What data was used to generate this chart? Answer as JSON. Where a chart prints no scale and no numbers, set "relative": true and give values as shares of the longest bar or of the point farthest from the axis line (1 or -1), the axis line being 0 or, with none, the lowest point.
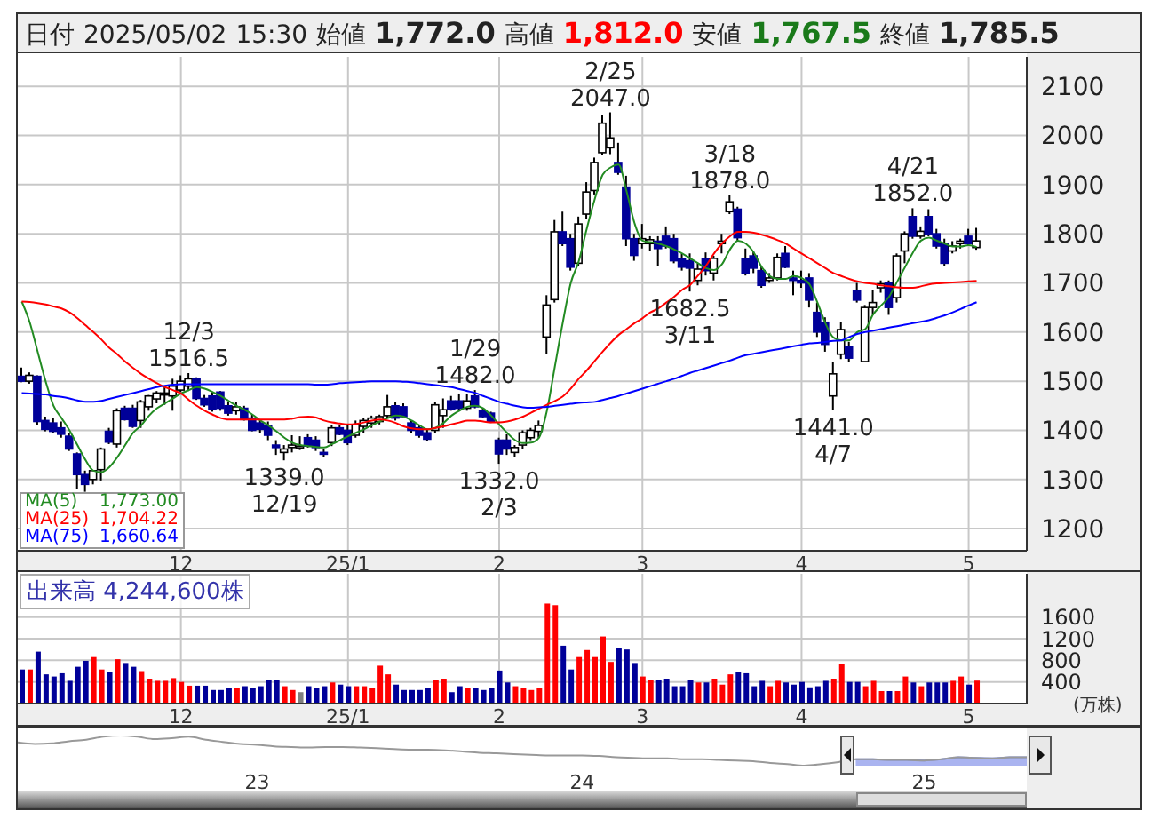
{
  "chart_data": [
    {
      "type": "candlestick",
      "title": "日付 2025/05/02 15:30 始値 1,772.0 高値 1,812.0 安値 1,767.5 終値 1,785.5",
      "categories": [
        null,
        null,
        null,
        null,
        null,
        null,
        null,
        null,
        null,
        null,
        null,
        null,
        null,
        null,
        null,
        null,
        null,
        null,
        null,
        null,
        "12",
        null,
        null,
        null,
        null,
        null,
        null,
        null,
        null,
        null,
        null,
        null,
        null,
        null,
        null,
        null,
        null,
        null,
        null,
        null,
        null,
        "25/1",
        null,
        null,
        null,
        null,
        null,
        null,
        null,
        null,
        null,
        null,
        null,
        null,
        null,
        null,
        null,
        null,
        null,
        null,
        "2",
        null,
        null,
        null,
        null,
        null,
        null,
        null,
        null,
        null,
        null,
        null,
        null,
        null,
        null,
        null,
        null,
        null,
        "3",
        null,
        null,
        null,
        null,
        null,
        null,
        null,
        null,
        null,
        null,
        null,
        null,
        null,
        null,
        null,
        null,
        null,
        null,
        null,
        "4",
        null,
        null,
        null,
        null,
        null,
        null,
        null,
        null,
        null,
        null,
        null,
        null,
        null,
        null,
        null,
        null,
        null,
        null,
        null,
        null,
        "5",
        null
      ],
      "ohlc": [
        [
          1510,
          1528,
          1498,
          1500
        ],
        [
          1500,
          1518,
          1495,
          1512
        ],
        [
          1510,
          1512,
          1410,
          1418
        ],
        [
          1420,
          1428,
          1398,
          1402
        ],
        [
          1415,
          1425,
          1395,
          1398
        ],
        [
          1405,
          1418,
          1385,
          1392
        ],
        [
          1388,
          1395,
          1358,
          1362
        ],
        [
          1352,
          1355,
          1280,
          1310
        ],
        [
          1310,
          1318,
          1275,
          1290
        ],
        [
          1300,
          1318,
          1290,
          1318
        ],
        [
          1320,
          1365,
          1298,
          1362
        ],
        [
          1398,
          1405,
          1372,
          1376
        ],
        [
          1372,
          1445,
          1365,
          1440
        ],
        [
          1445,
          1450,
          1420,
          1422
        ],
        [
          1445,
          1452,
          1405,
          1408
        ],
        [
          1420,
          1462,
          1405,
          1458
        ],
        [
          1448,
          1472,
          1440,
          1470
        ],
        [
          1464,
          1480,
          1455,
          1476
        ],
        [
          1472,
          1490,
          1452,
          1476
        ],
        [
          1470,
          1505,
          1440,
          1490
        ],
        [
          1482,
          1512,
          1478,
          1500
        ],
        [
          1490,
          1516.5,
          1480,
          1505
        ],
        [
          1505,
          1508,
          1462,
          1465
        ],
        [
          1465,
          1472,
          1448,
          1452
        ],
        [
          1470,
          1478,
          1438,
          1442
        ],
        [
          1478,
          1480,
          1440,
          1445
        ],
        [
          1450,
          1458,
          1430,
          1435
        ],
        [
          1440,
          1458,
          1432,
          1448
        ],
        [
          1445,
          1450,
          1420,
          1422
        ],
        [
          1425,
          1432,
          1398,
          1400
        ],
        [
          1415,
          1420,
          1395,
          1402
        ],
        [
          1410,
          1418,
          1380,
          1390
        ],
        [
          1370,
          1380,
          1350,
          1365
        ],
        [
          1355,
          1370,
          1339,
          1362
        ],
        [
          1365,
          1390,
          1355,
          1370
        ],
        [
          1368,
          1388,
          1360,
          1368
        ],
        [
          1385,
          1392,
          1365,
          1368
        ],
        [
          1380,
          1388,
          1358,
          1365
        ],
        [
          1355,
          1362,
          1345,
          1352
        ],
        [
          1375,
          1410,
          1368,
          1405
        ],
        [
          1405,
          1410,
          1390,
          1392
        ],
        [
          1400,
          1412,
          1370,
          1375
        ],
        [
          1390,
          1420,
          1385,
          1412
        ],
        [
          1408,
          1425,
          1395,
          1420
        ],
        [
          1415,
          1430,
          1405,
          1425
        ],
        [
          1418,
          1432,
          1412,
          1428
        ],
        [
          1430,
          1472,
          1425,
          1448
        ],
        [
          1450,
          1458,
          1420,
          1425
        ],
        [
          1448,
          1455,
          1425,
          1428
        ],
        [
          1415,
          1420,
          1395,
          1400
        ],
        [
          1405,
          1410,
          1385,
          1390
        ],
        [
          1395,
          1402,
          1378,
          1382
        ],
        [
          1400,
          1458,
          1395,
          1452
        ],
        [
          1430,
          1465,
          1405,
          1442
        ],
        [
          1460,
          1470,
          1440,
          1442
        ],
        [
          1460,
          1475,
          1440,
          1445
        ],
        [
          1445,
          1475,
          1440,
          1460
        ],
        [
          1470,
          1482,
          1445,
          1448
        ],
        [
          1440,
          1445,
          1425,
          1428
        ],
        [
          1435,
          1438,
          1415,
          1418
        ],
        [
          1380,
          1385,
          1332,
          1352
        ],
        [
          1380,
          1392,
          1350,
          1362
        ],
        [
          1355,
          1370,
          1345,
          1365
        ],
        [
          1370,
          1400,
          1362,
          1395
        ],
        [
          1385,
          1405,
          1380,
          1400
        ],
        [
          1398,
          1420,
          1385,
          1410
        ],
        [
          1590,
          1675,
          1555,
          1655
        ],
        [
          1666,
          1828,
          1660,
          1804
        ],
        [
          1804,
          1845,
          1775,
          1780
        ],
        [
          1790,
          1800,
          1725,
          1732
        ],
        [
          1740,
          1835,
          1735,
          1820
        ],
        [
          1840,
          1905,
          1830,
          1885
        ],
        [
          1888,
          1955,
          1880,
          1945
        ],
        [
          1965,
          2042,
          1960,
          2025
        ],
        [
          1975,
          2047,
          1962,
          1995
        ],
        [
          1945,
          1985,
          1920,
          1925
        ],
        [
          1895,
          1918,
          1775,
          1790
        ],
        [
          1790,
          1800,
          1745,
          1756
        ],
        [
          1780,
          1820,
          1770,
          1790
        ],
        [
          1780,
          1795,
          1765,
          1788
        ],
        [
          1785,
          1795,
          1735,
          1770
        ],
        [
          1795,
          1815,
          1770,
          1775
        ],
        [
          1790,
          1800,
          1740,
          1745
        ],
        [
          1750,
          1760,
          1725,
          1732
        ],
        [
          1745,
          1760,
          1682.5,
          1730
        ],
        [
          1705,
          1740,
          1695,
          1728
        ],
        [
          1750,
          1762,
          1715,
          1725
        ],
        [
          1720,
          1755,
          1705,
          1750
        ],
        [
          1780,
          1800,
          1760,
          1785
        ],
        [
          1845,
          1878,
          1840,
          1865
        ],
        [
          1850,
          1855,
          1785,
          1792
        ],
        [
          1750,
          1770,
          1715,
          1720
        ],
        [
          1755,
          1765,
          1720,
          1730
        ],
        [
          1725,
          1735,
          1690,
          1695
        ],
        [
          1705,
          1720,
          1700,
          1710
        ],
        [
          1710,
          1760,
          1705,
          1752
        ],
        [
          1760,
          1775,
          1730,
          1732
        ],
        [
          1710,
          1725,
          1675,
          1705
        ],
        [
          1705,
          1725,
          1690,
          1700
        ],
        [
          1710,
          1720,
          1650,
          1665
        ],
        [
          1640,
          1660,
          1590,
          1600
        ],
        [
          1620,
          1630,
          1560,
          1575
        ],
        [
          1470,
          1540,
          1441,
          1515
        ],
        [
          1555,
          1620,
          1545,
          1605
        ],
        [
          1570,
          1580,
          1540,
          1547
        ],
        [
          1685,
          1700,
          1660,
          1665
        ],
        [
          1540,
          1655,
          1540,
          1650
        ],
        [
          1650,
          1685,
          1635,
          1660
        ],
        [
          1690,
          1705,
          1680,
          1698
        ],
        [
          1700,
          1705,
          1635,
          1650
        ],
        [
          1670,
          1760,
          1660,
          1755
        ],
        [
          1765,
          1805,
          1740,
          1800
        ],
        [
          1835,
          1852,
          1790,
          1795
        ],
        [
          1795,
          1815,
          1790,
          1805
        ],
        [
          1835,
          1850,
          1795,
          1800
        ],
        [
          1800,
          1810,
          1770,
          1775
        ],
        [
          1780,
          1790,
          1735,
          1740
        ],
        [
          1765,
          1785,
          1760,
          1775
        ],
        [
          1780,
          1790,
          1770,
          1785
        ],
        [
          1795,
          1810,
          1775,
          1780
        ],
        [
          1772,
          1812,
          1767.5,
          1785.5
        ]
      ],
      "colors": [
        "#000099",
        "#ffffff",
        "#000099",
        "#000099",
        "#000099",
        "#000099",
        "#000099",
        "#000099",
        "#000099",
        "#ffffff",
        "#ffffff",
        "#000099",
        "#ffffff",
        "#000099",
        "#000099",
        "#ffffff",
        "#ffffff",
        "#ffffff",
        "#ffffff",
        "#ffffff",
        "#ffffff",
        "#ffffff",
        "#000099",
        "#000099",
        "#000099",
        "#000099",
        "#000099",
        "#ffffff",
        "#000099",
        "#000099",
        "#000099",
        "#000099",
        "#000099",
        "#ffffff",
        "#ffffff",
        "#ffffff",
        "#000099",
        "#000099",
        "#000099",
        "#ffffff",
        "#000099",
        "#000099",
        "#ffffff",
        "#ffffff",
        "#ffffff",
        "#ffffff",
        "#ffffff",
        "#000099",
        "#000099",
        "#000099",
        "#000099",
        "#000099",
        "#ffffff",
        "#ffffff",
        "#000099",
        "#000099",
        "#ffffff",
        "#000099",
        "#000099",
        "#000099",
        "#000099",
        "#000099",
        "#ffffff",
        "#ffffff",
        "#ffffff",
        "#ffffff",
        "#ffffff",
        "#ffffff",
        "#000099",
        "#000099",
        "#ffffff",
        "#ffffff",
        "#ffffff",
        "#ffffff",
        "#ffffff",
        "#000099",
        "#000099",
        "#000099",
        "#ffffff",
        "#ffffff",
        "#000099",
        "#000099",
        "#000099",
        "#000099",
        "#000099",
        "#ffffff",
        "#000099",
        "#ffffff",
        "#ffffff",
        "#ffffff",
        "#000099",
        "#000099",
        "#000099",
        "#000099",
        "#ffffff",
        "#ffffff",
        "#000099",
        "#000099",
        "#000099",
        "#000099",
        "#000099",
        "#000099",
        "#ffffff",
        "#ffffff",
        "#000099",
        "#000099",
        "#ffffff",
        "#ffffff",
        "#ffffff",
        "#000099",
        "#ffffff",
        "#ffffff",
        "#000099",
        "#ffffff",
        "#000099",
        "#000099",
        "#000099",
        "#ffffff",
        "#ffffff",
        "#000099",
        "#ffffff"
      ],
      "series": [
        {
          "name": "MA(5)",
          "type": "line",
          "color": "#228b22",
          "values": [
            1662,
            1620,
            1560,
            1500,
            1450,
            1425,
            1400,
            1370,
            1340,
            1318,
            1315,
            1325,
            1345,
            1370,
            1395,
            1410,
            1430,
            1445,
            1455,
            1465,
            1475,
            1482,
            1488,
            1485,
            1478,
            1470,
            1460,
            1450,
            1442,
            1432,
            1420,
            1410,
            1398,
            1385,
            1375,
            1370,
            1368,
            1366,
            1365,
            1372,
            1380,
            1388,
            1395,
            1402,
            1410,
            1418,
            1425,
            1430,
            1428,
            1420,
            1410,
            1402,
            1405,
            1415,
            1430,
            1440,
            1448,
            1450,
            1445,
            1430,
            1412,
            1395,
            1380,
            1374,
            1375,
            1385,
            1440,
            1530,
            1620,
            1700,
            1744,
            1810,
            1870,
            1920,
            1935,
            1941,
            1887,
            1822,
            1786,
            1783,
            1780,
            1775,
            1768,
            1760,
            1750,
            1740,
            1730,
            1726,
            1738,
            1768,
            1786,
            1780,
            1762,
            1732,
            1714,
            1708,
            1708,
            1714,
            1710,
            1697,
            1660,
            1618,
            1589,
            1583,
            1583,
            1600,
            1606,
            1636,
            1654,
            1672,
            1702,
            1732,
            1762,
            1786,
            1792,
            1786,
            1780,
            1774,
            1774,
            1777,
            1773
          ]
        },
        {
          "name": "MA(25)",
          "type": "line",
          "color": "#ff0000",
          "values": [
            1662,
            1661,
            1659,
            1656,
            1652,
            1648,
            1640,
            1628,
            1614,
            1600,
            1585,
            1568,
            1555,
            1540,
            1527,
            1515,
            1505,
            1496,
            1488,
            1482,
            1475,
            1462,
            1450,
            1440,
            1432,
            1425,
            1422,
            1422,
            1422,
            1422,
            1422,
            1422,
            1422,
            1422,
            1424,
            1427,
            1428,
            1426,
            1420,
            1416,
            1414,
            1412,
            1413,
            1416,
            1420,
            1422,
            1420,
            1415,
            1408,
            1404,
            1402,
            1402,
            1405,
            1408,
            1412,
            1416,
            1420,
            1420,
            1418,
            1416,
            1416,
            1418,
            1422,
            1428,
            1436,
            1444,
            1452,
            1460,
            1469,
            1485,
            1505,
            1522,
            1541,
            1560,
            1578,
            1594,
            1606,
            1618,
            1628,
            1640,
            1648,
            1660,
            1672,
            1686,
            1696,
            1715,
            1735,
            1760,
            1780,
            1795,
            1804,
            1804,
            1802,
            1798,
            1793,
            1787,
            1780,
            1770,
            1760,
            1750,
            1740,
            1730,
            1720,
            1714,
            1708,
            1703,
            1700,
            1698,
            1695,
            1693,
            1691,
            1690,
            1690,
            1693,
            1697,
            1699,
            1700,
            1701,
            1702,
            1703,
            1704.22
          ]
        },
        {
          "name": "MA(75)",
          "type": "line",
          "color": "#0000ff",
          "values": [
            1476,
            1475,
            1474,
            1473,
            1470,
            1468,
            1465,
            1461,
            1458,
            1458,
            1460,
            1464,
            1468,
            1472,
            1476,
            1480,
            1484,
            1488,
            1491,
            1493,
            1494,
            1494,
            1494,
            1494,
            1494,
            1494,
            1494,
            1494,
            1494,
            1494,
            1494,
            1494,
            1494,
            1494,
            1494,
            1494,
            1494,
            1493,
            1493,
            1494,
            1496,
            1497,
            1498,
            1499,
            1500,
            1500,
            1500,
            1500,
            1499,
            1498,
            1496,
            1494,
            1492,
            1490,
            1488,
            1484,
            1480,
            1476,
            1470,
            1464,
            1458,
            1454,
            1450,
            1447,
            1446,
            1447,
            1448,
            1450,
            1452,
            1454,
            1456,
            1457,
            1458,
            1462,
            1466,
            1470,
            1475,
            1480,
            1485,
            1490,
            1495,
            1500,
            1505,
            1511,
            1517,
            1522,
            1527,
            1532,
            1537,
            1542,
            1548,
            1553,
            1556,
            1559,
            1562,
            1565,
            1568,
            1571,
            1574,
            1577,
            1578,
            1580,
            1582,
            1583,
            1590,
            1596,
            1600,
            1603,
            1606,
            1609,
            1612,
            1615,
            1618,
            1621,
            1624,
            1629,
            1634,
            1640,
            1647,
            1654,
            1660.64
          ]
        }
      ],
      "ylim": [
        1155,
        2160
      ],
      "yticks": [
        1200,
        1300,
        1400,
        1500,
        1600,
        1700,
        1800,
        1900,
        2000,
        2100
      ],
      "grid": true,
      "legend": "bottom left",
      "annotations": [
        {
          "text": "12/3\n1516.5",
          "y": 1516.5
        },
        {
          "text": "1339.0\n12/19",
          "y": 1339
        },
        {
          "text": "1/29\n1482.0",
          "y": 1482
        },
        {
          "text": "1332.0\n2/3",
          "y": 1332
        },
        {
          "text": "2/25\n2047.0",
          "y": 2047
        },
        {
          "text": "1682.5\n3/11",
          "y": 1682.5
        },
        {
          "text": "3/18\n1878.0",
          "y": 1878
        },
        {
          "text": "1441.0\n4/7",
          "y": 1441
        },
        {
          "text": "4/21\n1852.0",
          "y": 1852
        },
        "1,773.00",
        "1,704.22",
        "1,660.64"
      ]
    },
    {
      "type": "bar",
      "title": "出来高 4,244,600株",
      "ylabel": "(万株)",
      "categories": [
        null,
        null,
        null,
        null,
        null,
        null,
        null,
        null,
        null,
        null,
        null,
        null,
        null,
        null,
        null,
        null,
        null,
        null,
        null,
        null,
        "12",
        null,
        null,
        null,
        null,
        null,
        null,
        null,
        null,
        null,
        null,
        null,
        null,
        null,
        null,
        null,
        null,
        null,
        null,
        null,
        null,
        "25/1",
        null,
        null,
        null,
        null,
        null,
        null,
        null,
        null,
        null,
        null,
        null,
        null,
        null,
        null,
        null,
        null,
        null,
        null,
        "2",
        null,
        null,
        null,
        null,
        null,
        null,
        null,
        null,
        null,
        null,
        null,
        null,
        null,
        null,
        null,
        null,
        null,
        "3",
        null,
        null,
        null,
        null,
        null,
        null,
        null,
        null,
        null,
        null,
        null,
        null,
        null,
        null,
        null,
        null,
        null,
        null,
        null,
        "4",
        null,
        null,
        null,
        null,
        null,
        null,
        null,
        null,
        null,
        null,
        null,
        null,
        null,
        null,
        null,
        null,
        null,
        null,
        null,
        null,
        "5",
        null
      ],
      "values": [
        630,
        630,
        960,
        540,
        500,
        560,
        420,
        680,
        790,
        860,
        630,
        580,
        820,
        750,
        680,
        600,
        460,
        420,
        420,
        470,
        400,
        330,
        330,
        330,
        250,
        250,
        280,
        280,
        320,
        290,
        320,
        430,
        430,
        320,
        250,
        210,
        320,
        290,
        320,
        390,
        350,
        320,
        320,
        320,
        290,
        700,
        540,
        350,
        250,
        250,
        250,
        280,
        440,
        460,
        210,
        320,
        280,
        280,
        250,
        280,
        610,
        390,
        320,
        280,
        250,
        290,
        1850,
        1820,
        1070,
        630,
        860,
        990,
        860,
        1240,
        770,
        1030,
        1000,
        750,
        500,
        440,
        440,
        460,
        320,
        320,
        440,
        390,
        390,
        460,
        350,
        540,
        580,
        560,
        320,
        420,
        320,
        420,
        390,
        350,
        400,
        300,
        320,
        420,
        460,
        730,
        400,
        400,
        320,
        420,
        230,
        230,
        230,
        500,
        390,
        320,
        390,
        390,
        390,
        420,
        500,
        350,
        424
      ],
      "colors": [
        "#000099",
        "#ff0000",
        "#000099",
        "#000099",
        "#000099",
        "#000099",
        "#000099",
        "#000099",
        "#000099",
        "#ff0000",
        "#ff0000",
        "#000099",
        "#ff0000",
        "#000099",
        "#000099",
        "#ff0000",
        "#ff0000",
        "#ff0000",
        "#ff0000",
        "#ff0000",
        "#ff0000",
        "#ff0000",
        "#000099",
        "#000099",
        "#000099",
        "#000099",
        "#000099",
        "#ff0000",
        "#000099",
        "#000099",
        "#000099",
        "#000099",
        "#000099",
        "#ff0000",
        "#ff0000",
        "#808080",
        "#000099",
        "#000099",
        "#000099",
        "#ff0000",
        "#000099",
        "#000099",
        "#ff0000",
        "#ff0000",
        "#ff0000",
        "#ff0000",
        "#ff0000",
        "#000099",
        "#000099",
        "#000099",
        "#000099",
        "#000099",
        "#ff0000",
        "#ff0000",
        "#000099",
        "#000099",
        "#ff0000",
        "#000099",
        "#000099",
        "#000099",
        "#000099",
        "#000099",
        "#ff0000",
        "#ff0000",
        "#ff0000",
        "#ff0000",
        "#ff0000",
        "#ff0000",
        "#000099",
        "#000099",
        "#ff0000",
        "#ff0000",
        "#ff0000",
        "#ff0000",
        "#ff0000",
        "#000099",
        "#000099",
        "#000099",
        "#ff0000",
        "#ff0000",
        "#000099",
        "#000099",
        "#000099",
        "#000099",
        "#000099",
        "#ff0000",
        "#000099",
        "#ff0000",
        "#ff0000",
        "#ff0000",
        "#000099",
        "#000099",
        "#000099",
        "#000099",
        "#ff0000",
        "#ff0000",
        "#000099",
        "#000099",
        "#000099",
        "#000099",
        "#000099",
        "#000099",
        "#ff0000",
        "#ff0000",
        "#000099",
        "#000099",
        "#ff0000",
        "#ff0000",
        "#ff0000",
        "#000099",
        "#ff0000",
        "#ff0000",
        "#000099",
        "#ff0000",
        "#000099",
        "#000099",
        "#000099",
        "#ff0000",
        "#ff0000",
        "#000099",
        "#ff0000"
      ],
      "ylim": [
        0,
        2400
      ],
      "yticks": [
        400,
        800,
        1200,
        1600
      ],
      "grid": true
    },
    {
      "type": "line",
      "relative": true,
      "tick_labels": "x",
      "categories": [
        null,
        null,
        null,
        null,
        null,
        null,
        null,
        null,
        null,
        null,
        null,
        null,
        null,
        null,
        "23",
        null,
        null,
        null,
        null,
        null,
        null,
        null,
        null,
        null,
        null,
        null,
        null,
        null,
        null,
        null,
        null,
        null,
        null,
        "24",
        null,
        null,
        null,
        null,
        null,
        null,
        null,
        null,
        null,
        null,
        null,
        null,
        null,
        null,
        null,
        null,
        null,
        null,
        null,
        "25",
        null,
        null,
        null,
        null,
        null,
        null
      ],
      "series": [
        {
          "type": "line",
          "color": "#999999",
          "values": [
            0.77,
            0.72,
            0.74,
            0.81,
            0.86,
            0.96,
            1,
            0.96,
            0.88,
            0.91,
            0.96,
            0.86,
            0.79,
            0.72,
            0.69,
            0.64,
            0.62,
            0.6,
            0.62,
            0.62,
            0.6,
            0.58,
            0.55,
            0.53,
            0.53,
            0.51,
            0.47,
            0.43,
            0.41,
            0.38,
            0.36,
            0.34,
            0.34,
            0.34,
            0.32,
            0.28,
            0.26,
            0.24,
            0.24,
            0.21,
            0.21,
            0.19,
            0.17,
            0.15,
            0.09,
            0.05,
            0,
            0.05,
            0.12,
            0.21,
            0.21,
            0.19,
            0.19,
            0.17,
            0.21,
            0.28,
            0.26,
            0.24,
            0.28,
            0.28
          ]
        },
        {
          "type": "area",
          "color": "#aab4f0",
          "values": [
            null,
            null,
            null,
            null,
            null,
            null,
            null,
            null,
            null,
            null,
            null,
            null,
            null,
            null,
            null,
            null,
            null,
            null,
            null,
            null,
            null,
            null,
            null,
            null,
            null,
            null,
            null,
            null,
            null,
            null,
            null,
            null,
            null,
            null,
            null,
            null,
            null,
            null,
            null,
            null,
            null,
            null,
            null,
            null,
            null,
            null,
            null,
            null,
            null,
            0.21,
            0.21,
            0.19,
            0.19,
            0.17,
            0.21,
            0.28,
            0.26,
            0.24,
            0.28,
            0.28
          ]
        }
      ]
    }
  ]
}
